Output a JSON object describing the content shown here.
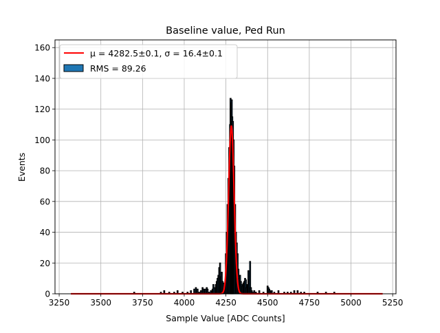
{
  "chart_data": {
    "type": "histogram",
    "title": "Baseline value, Ped Run",
    "xlabel": "Sample Value [ADC Counts]",
    "ylabel": "Events",
    "xlim": [
      3225,
      5270
    ],
    "ylim": [
      0,
      165
    ],
    "xticks": [
      3250,
      3500,
      3750,
      4000,
      4250,
      4500,
      4750,
      5000,
      5250
    ],
    "yticks": [
      0,
      20,
      40,
      60,
      80,
      100,
      120,
      140,
      160
    ],
    "grid": true,
    "legend_position": "top-left",
    "legend": [
      {
        "label": "μ = 4282.5±0.1, σ = 16.4±0.1",
        "kind": "line",
        "color": "#ff0000"
      },
      {
        "label": "RMS = 89.26",
        "kind": "patch",
        "color": "#1f77b4"
      }
    ],
    "histogram": {
      "bin_width": 6,
      "fill_color": "#1f77b4",
      "edge_color": "#000000",
      "bins": [
        [
          3700,
          1
        ],
        [
          3860,
          1
        ],
        [
          3880,
          2
        ],
        [
          3910,
          1
        ],
        [
          3940,
          1
        ],
        [
          3960,
          2
        ],
        [
          3990,
          1
        ],
        [
          4020,
          1
        ],
        [
          4040,
          2
        ],
        [
          4060,
          3
        ],
        [
          4070,
          4
        ],
        [
          4080,
          3
        ],
        [
          4090,
          1
        ],
        [
          4100,
          2
        ],
        [
          4110,
          4
        ],
        [
          4115,
          3
        ],
        [
          4125,
          3
        ],
        [
          4135,
          4
        ],
        [
          4140,
          3
        ],
        [
          4150,
          1
        ],
        [
          4160,
          2
        ],
        [
          4170,
          3
        ],
        [
          4175,
          6
        ],
        [
          4180,
          4
        ],
        [
          4190,
          6
        ],
        [
          4195,
          8
        ],
        [
          4200,
          10
        ],
        [
          4205,
          12
        ],
        [
          4210,
          17
        ],
        [
          4215,
          20
        ],
        [
          4220,
          11
        ],
        [
          4225,
          14
        ],
        [
          4230,
          8
        ],
        [
          4235,
          7
        ],
        [
          4240,
          3
        ],
        [
          4245,
          6
        ],
        [
          4250,
          26
        ],
        [
          4255,
          40
        ],
        [
          4260,
          58
        ],
        [
          4265,
          75
        ],
        [
          4270,
          95
        ],
        [
          4275,
          110
        ],
        [
          4278,
          127
        ],
        [
          4282,
          124
        ],
        [
          4285,
          126
        ],
        [
          4288,
          115
        ],
        [
          4292,
          112
        ],
        [
          4296,
          100
        ],
        [
          4300,
          83
        ],
        [
          4305,
          58
        ],
        [
          4310,
          40
        ],
        [
          4315,
          33
        ],
        [
          4320,
          26
        ],
        [
          4325,
          16
        ],
        [
          4330,
          10
        ],
        [
          4335,
          12
        ],
        [
          4340,
          8
        ],
        [
          4345,
          6
        ],
        [
          4350,
          5
        ],
        [
          4355,
          7
        ],
        [
          4360,
          8
        ],
        [
          4365,
          10
        ],
        [
          4370,
          9
        ],
        [
          4375,
          4
        ],
        [
          4380,
          6
        ],
        [
          4385,
          15
        ],
        [
          4390,
          9
        ],
        [
          4395,
          21
        ],
        [
          4400,
          4
        ],
        [
          4405,
          2
        ],
        [
          4410,
          1
        ],
        [
          4420,
          2
        ],
        [
          4430,
          1
        ],
        [
          4450,
          2
        ],
        [
          4475,
          1
        ],
        [
          4500,
          5
        ],
        [
          4505,
          4
        ],
        [
          4510,
          3
        ],
        [
          4515,
          2
        ],
        [
          4525,
          2
        ],
        [
          4540,
          1
        ],
        [
          4565,
          2
        ],
        [
          4600,
          1
        ],
        [
          4620,
          1
        ],
        [
          4640,
          1
        ],
        [
          4660,
          2
        ],
        [
          4680,
          2
        ],
        [
          4700,
          1
        ],
        [
          4720,
          1
        ],
        [
          4800,
          1
        ],
        [
          4850,
          1
        ],
        [
          4900,
          1
        ]
      ]
    },
    "fit": {
      "type": "gaussian",
      "color": "#ff0000",
      "mu": 4282.5,
      "sigma": 16.4,
      "amplitude": 109,
      "range": [
        3320,
        5190
      ]
    }
  }
}
